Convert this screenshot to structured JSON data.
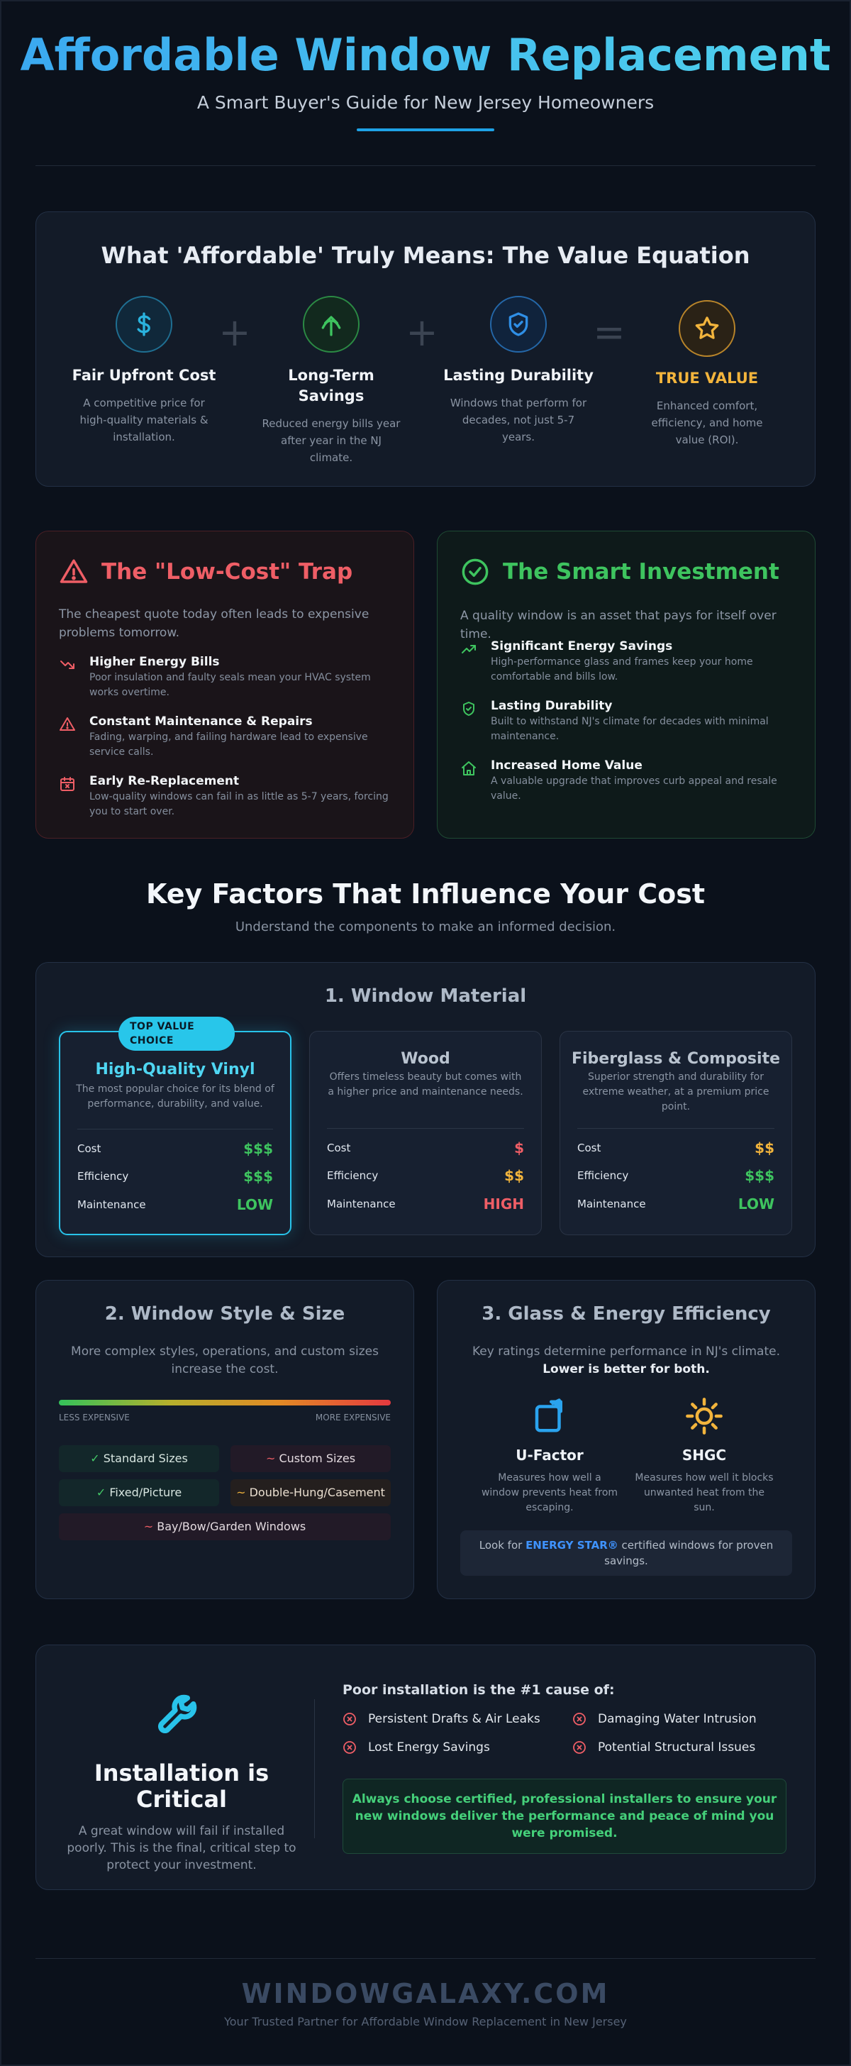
{
  "header": {
    "title": "Affordable Window Replacement",
    "subtitle": "A Smart Buyer's Guide for New Jersey Homeowners"
  },
  "value_equation": {
    "title": "What 'Affordable' Truly Means: The Value Equation",
    "items": [
      {
        "title": "Fair Upfront Cost",
        "desc": "A competitive price for high-quality materials & installation.",
        "icon": "dollar-icon",
        "color": "#2ab3de"
      },
      {
        "title": "Long-Term Savings",
        "desc": "Reduced energy bills year after year in the NJ climate.",
        "icon": "leaf-arrow-icon",
        "color": "#3ec45f"
      },
      {
        "title": "Lasting Durability",
        "desc": "Windows that perform for decades, not just 5-7 years.",
        "icon": "shield-check-icon",
        "color": "#2f8fe6"
      },
      {
        "title": "TRUE VALUE",
        "desc": "Enhanced comfort, efficiency, and home value (ROI).",
        "icon": "star-icon",
        "color": "#f2b43c"
      }
    ],
    "operators": [
      "+",
      "+",
      "="
    ]
  },
  "trap": {
    "title": "The \"Low-Cost\" Trap",
    "intro": "The cheapest quote today often leads to expensive problems tomorrow.",
    "color": "#ef5e66",
    "items": [
      {
        "title": "Higher Energy Bills",
        "desc": "Poor insulation and faulty seals mean your HVAC system works overtime.",
        "icon": "trending-down-icon"
      },
      {
        "title": "Constant Maintenance & Repairs",
        "desc": "Fading, warping, and failing hardware lead to expensive service calls.",
        "icon": "warning-icon"
      },
      {
        "title": "Early Re-Replacement",
        "desc": "Low-quality windows can fail in as little as 5-7 years, forcing you to start over.",
        "icon": "calendar-x-icon"
      }
    ]
  },
  "investment": {
    "title": "The Smart Investment",
    "intro": "A quality window is an asset that pays for itself over time.",
    "color": "#3ec45f",
    "items": [
      {
        "title": "Significant Energy Savings",
        "desc": "High-performance glass and frames keep your home comfortable and bills low.",
        "icon": "trending-up-icon"
      },
      {
        "title": "Lasting Durability",
        "desc": "Built to withstand NJ's climate for decades with minimal maintenance.",
        "icon": "shield-check-icon"
      },
      {
        "title": "Increased Home Value",
        "desc": "A valuable upgrade that improves curb appeal and resale value.",
        "icon": "home-icon"
      }
    ]
  },
  "key_factors": {
    "title": "Key Factors That Influence Your Cost",
    "subtitle": "Understand the components to make an informed decision."
  },
  "materials": {
    "title": "1. Window Material",
    "badge": "TOP VALUE CHOICE",
    "labels": {
      "cost": "Cost",
      "efficiency": "Efficiency",
      "maintenance": "Maintenance"
    },
    "cards": [
      {
        "name": "High-Quality Vinyl",
        "desc": "The most popular choice for its blend of performance, durability, and value.",
        "cost": "$$$",
        "efficiency": "$$$",
        "maintenance": "LOW",
        "cost_color": "#3ec45f",
        "efficiency_color": "#3ec45f",
        "maintenance_color": "#3ec45f"
      },
      {
        "name": "Wood",
        "desc": "Offers timeless beauty but comes with a higher price and maintenance needs.",
        "cost": "$",
        "efficiency": "$$",
        "maintenance": "HIGH",
        "cost_color": "#ef5e66",
        "efficiency_color": "#f2b43c",
        "maintenance_color": "#ef5e66"
      },
      {
        "name": "Fiberglass & Composite",
        "desc": "Superior strength and durability for extreme weather, at a premium price point.",
        "cost": "$$",
        "efficiency": "$$$",
        "maintenance": "LOW",
        "cost_color": "#f2b43c",
        "efficiency_color": "#3ec45f",
        "maintenance_color": "#3ec45f"
      }
    ]
  },
  "style_size": {
    "title": "2. Window Style & Size",
    "desc": "More complex styles, operations, and custom sizes increase the cost.",
    "scale_low": "LESS EXPENSIVE",
    "scale_high": "MORE EXPENSIVE",
    "chips": [
      {
        "mark": "✓",
        "label": "Standard Sizes"
      },
      {
        "mark": "~",
        "label": "Custom Sizes"
      },
      {
        "mark": "✓",
        "label": "Fixed/Picture"
      },
      {
        "mark": "~",
        "label": "Double-Hung/Casement"
      },
      {
        "mark": "~",
        "label": "Bay/Bow/Garden Windows"
      }
    ]
  },
  "glass": {
    "title": "3. Glass & Energy Efficiency",
    "desc": "Key ratings determine performance in NJ's climate.",
    "desc_bold": "Lower is better for both.",
    "metrics": [
      {
        "name": "U-Factor",
        "desc": "Measures how well a window prevents heat from escaping.",
        "icon": "window-heat-icon",
        "color": "#2aa3ee"
      },
      {
        "name": "SHGC",
        "desc": "Measures how well it blocks unwanted heat from the sun.",
        "icon": "sun-icon",
        "color": "#f2b43c"
      }
    ],
    "energy_pre": "Look for ",
    "energy_brand": "ENERGY STAR®",
    "energy_post": " certified windows for proven savings."
  },
  "installation": {
    "title": "Installation is Critical",
    "desc": "A great window will fail if installed poorly. This is the final, critical step to protect your investment.",
    "causes_title": "Poor installation is the #1 cause of:",
    "causes": [
      "Persistent Drafts & Air Leaks",
      "Damaging Water Intrusion",
      "Lost Energy Savings",
      "Potential Structural Issues"
    ],
    "callout": "Always choose certified, professional installers to ensure your new windows deliver the performance and peace of mind you were promised.",
    "icon": "wrench-icon"
  },
  "footer": {
    "brand": "WINDOWGALAXY.COM",
    "tagline": "Your Trusted Partner for Affordable Window Replacement in New Jersey"
  }
}
